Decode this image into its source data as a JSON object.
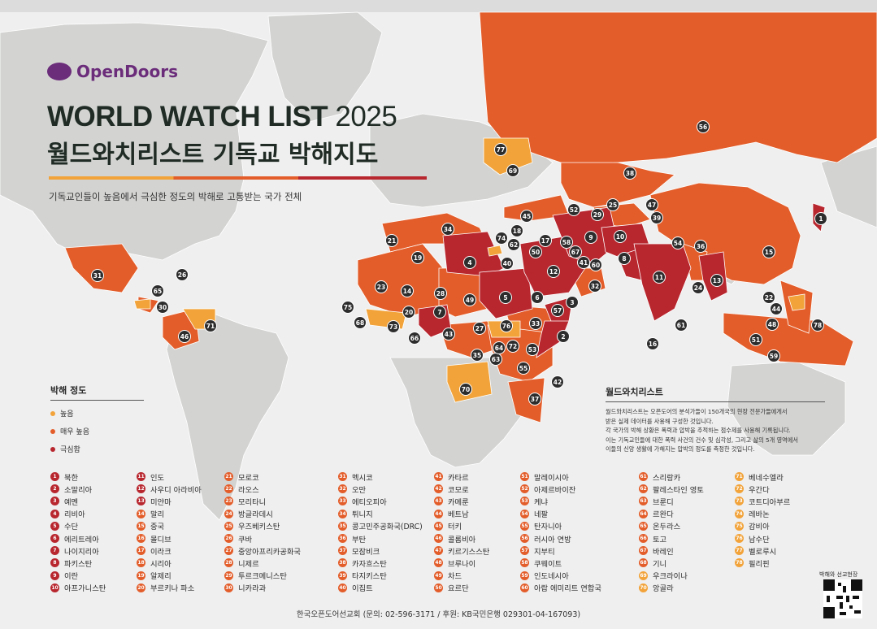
{
  "header": {
    "logo_text": "OpenDoors",
    "title_en": "WORLD WATCH LIST",
    "title_year": "2025",
    "title_ko": "월드와치리스트 기독교 박해지도",
    "subtitle": "기독교인들이 높음에서 극심한 정도의 박해로 고통받는 국가 전체"
  },
  "legend": {
    "title": "박해 정도",
    "items": [
      {
        "label": "높음",
        "color": "#f2a33a"
      },
      {
        "label": "매우 높음",
        "color": "#e35d2a"
      },
      {
        "label": "극심함",
        "color": "#b8262e"
      }
    ]
  },
  "about": {
    "title": "월드와치리스트",
    "lines": [
      "월드와치리스트는 오픈도어의 분석가들이 150개국의 현장 전문가들에게서",
      "받은 실제 데이터를 사용해 구성한 것입니다.",
      "각 국가의 박해 상황은 폭력과 압박을 추적하는 점수제를 사용해 기록됩니다.",
      "이는 기독교인들에 대한 폭력 사건의 건수 및 심각성, 그리고 삶의 5개 영역에서",
      "이들의 신앙 생활에 가해지는 압박의 정도를 측정한 것입니다."
    ]
  },
  "levels": {
    "extreme": "#b8262e",
    "very_high": "#e35d2a",
    "high": "#f2a33a"
  },
  "countries": [
    {
      "rank": 1,
      "name": "북한",
      "level": "extreme"
    },
    {
      "rank": 2,
      "name": "소말리아",
      "level": "extreme"
    },
    {
      "rank": 3,
      "name": "예멘",
      "level": "extreme"
    },
    {
      "rank": 4,
      "name": "리비아",
      "level": "extreme"
    },
    {
      "rank": 5,
      "name": "수단",
      "level": "extreme"
    },
    {
      "rank": 6,
      "name": "에리트레아",
      "level": "extreme"
    },
    {
      "rank": 7,
      "name": "나이지리아",
      "level": "extreme"
    },
    {
      "rank": 8,
      "name": "파키스탄",
      "level": "extreme"
    },
    {
      "rank": 9,
      "name": "이란",
      "level": "extreme"
    },
    {
      "rank": 10,
      "name": "아프가니스탄",
      "level": "extreme"
    },
    {
      "rank": 11,
      "name": "인도",
      "level": "extreme"
    },
    {
      "rank": 12,
      "name": "사우디 아라비아",
      "level": "extreme"
    },
    {
      "rank": 13,
      "name": "미얀마",
      "level": "extreme"
    },
    {
      "rank": 14,
      "name": "말리",
      "level": "very_high"
    },
    {
      "rank": 15,
      "name": "중국",
      "level": "very_high"
    },
    {
      "rank": 16,
      "name": "몰디브",
      "level": "very_high"
    },
    {
      "rank": 17,
      "name": "이라크",
      "level": "very_high"
    },
    {
      "rank": 18,
      "name": "시리아",
      "level": "very_high"
    },
    {
      "rank": 19,
      "name": "알제리",
      "level": "very_high"
    },
    {
      "rank": 20,
      "name": "부르키나 파소",
      "level": "very_high"
    },
    {
      "rank": 21,
      "name": "모로코",
      "level": "very_high"
    },
    {
      "rank": 22,
      "name": "라오스",
      "level": "very_high"
    },
    {
      "rank": 23,
      "name": "모리타니",
      "level": "very_high"
    },
    {
      "rank": 24,
      "name": "방글라데시",
      "level": "very_high"
    },
    {
      "rank": 25,
      "name": "우즈베키스탄",
      "level": "very_high"
    },
    {
      "rank": 26,
      "name": "쿠바",
      "level": "very_high"
    },
    {
      "rank": 27,
      "name": "중앙아프리카공화국",
      "level": "very_high"
    },
    {
      "rank": 28,
      "name": "니제르",
      "level": "very_high"
    },
    {
      "rank": 29,
      "name": "투르크메니스탄",
      "level": "very_high"
    },
    {
      "rank": 30,
      "name": "니카라과",
      "level": "very_high"
    },
    {
      "rank": 31,
      "name": "멕시코",
      "level": "very_high"
    },
    {
      "rank": 32,
      "name": "오만",
      "level": "very_high"
    },
    {
      "rank": 33,
      "name": "에티오피아",
      "level": "very_high"
    },
    {
      "rank": 34,
      "name": "튀니지",
      "level": "very_high"
    },
    {
      "rank": 35,
      "name": "콩고민주공화국(DRC)",
      "level": "very_high"
    },
    {
      "rank": 36,
      "name": "부탄",
      "level": "very_high"
    },
    {
      "rank": 37,
      "name": "모잠비크",
      "level": "very_high"
    },
    {
      "rank": 38,
      "name": "카자흐스탄",
      "level": "very_high"
    },
    {
      "rank": 39,
      "name": "타지키스탄",
      "level": "very_high"
    },
    {
      "rank": 40,
      "name": "이집트",
      "level": "very_high"
    },
    {
      "rank": 41,
      "name": "카타르",
      "level": "very_high"
    },
    {
      "rank": 42,
      "name": "코모로",
      "level": "very_high"
    },
    {
      "rank": 43,
      "name": "카메룬",
      "level": "very_high"
    },
    {
      "rank": 44,
      "name": "베트남",
      "level": "very_high"
    },
    {
      "rank": 45,
      "name": "터키",
      "level": "very_high"
    },
    {
      "rank": 46,
      "name": "콜롬비아",
      "level": "very_high"
    },
    {
      "rank": 47,
      "name": "키르기스스탄",
      "level": "very_high"
    },
    {
      "rank": 48,
      "name": "브루나이",
      "level": "very_high"
    },
    {
      "rank": 49,
      "name": "차드",
      "level": "very_high"
    },
    {
      "rank": 50,
      "name": "요르단",
      "level": "very_high"
    },
    {
      "rank": 51,
      "name": "말레이시아",
      "level": "very_high"
    },
    {
      "rank": 52,
      "name": "아제르바이잔",
      "level": "very_high"
    },
    {
      "rank": 53,
      "name": "케냐",
      "level": "very_high"
    },
    {
      "rank": 54,
      "name": "네팔",
      "level": "very_high"
    },
    {
      "rank": 55,
      "name": "탄자니아",
      "level": "very_high"
    },
    {
      "rank": 56,
      "name": "러시아 연방",
      "level": "very_high"
    },
    {
      "rank": 57,
      "name": "지부티",
      "level": "very_high"
    },
    {
      "rank": 58,
      "name": "쿠웨이트",
      "level": "very_high"
    },
    {
      "rank": 59,
      "name": "인도네시아",
      "level": "very_high"
    },
    {
      "rank": 60,
      "name": "아랍 에미리트 연합국",
      "level": "very_high"
    },
    {
      "rank": 61,
      "name": "스리랑카",
      "level": "very_high"
    },
    {
      "rank": 62,
      "name": "팔레스타인 영토",
      "level": "very_high"
    },
    {
      "rank": 63,
      "name": "브룬디",
      "level": "very_high"
    },
    {
      "rank": 64,
      "name": "르완다",
      "level": "very_high"
    },
    {
      "rank": 65,
      "name": "온두라스",
      "level": "very_high"
    },
    {
      "rank": 66,
      "name": "토고",
      "level": "very_high"
    },
    {
      "rank": 67,
      "name": "바레인",
      "level": "very_high"
    },
    {
      "rank": 68,
      "name": "기니",
      "level": "very_high"
    },
    {
      "rank": 69,
      "name": "우크라이나",
      "level": "high"
    },
    {
      "rank": 70,
      "name": "앙골라",
      "level": "high"
    },
    {
      "rank": 71,
      "name": "베네수엘라",
      "level": "high"
    },
    {
      "rank": 72,
      "name": "우간다",
      "level": "high"
    },
    {
      "rank": 73,
      "name": "코트디아부르",
      "level": "high"
    },
    {
      "rank": 74,
      "name": "레바논",
      "level": "high"
    },
    {
      "rank": 75,
      "name": "감비아",
      "level": "high"
    },
    {
      "rank": 76,
      "name": "남수단",
      "level": "high"
    },
    {
      "rank": 77,
      "name": "벨로루시",
      "level": "high"
    },
    {
      "rank": 78,
      "name": "필리핀",
      "level": "high"
    }
  ],
  "footer": "한국오픈도어선교회 (문의: 02-596-3171 / 후원: KB국민은행 029301-04-167093)",
  "qr_label": "박해와 선교현장"
}
